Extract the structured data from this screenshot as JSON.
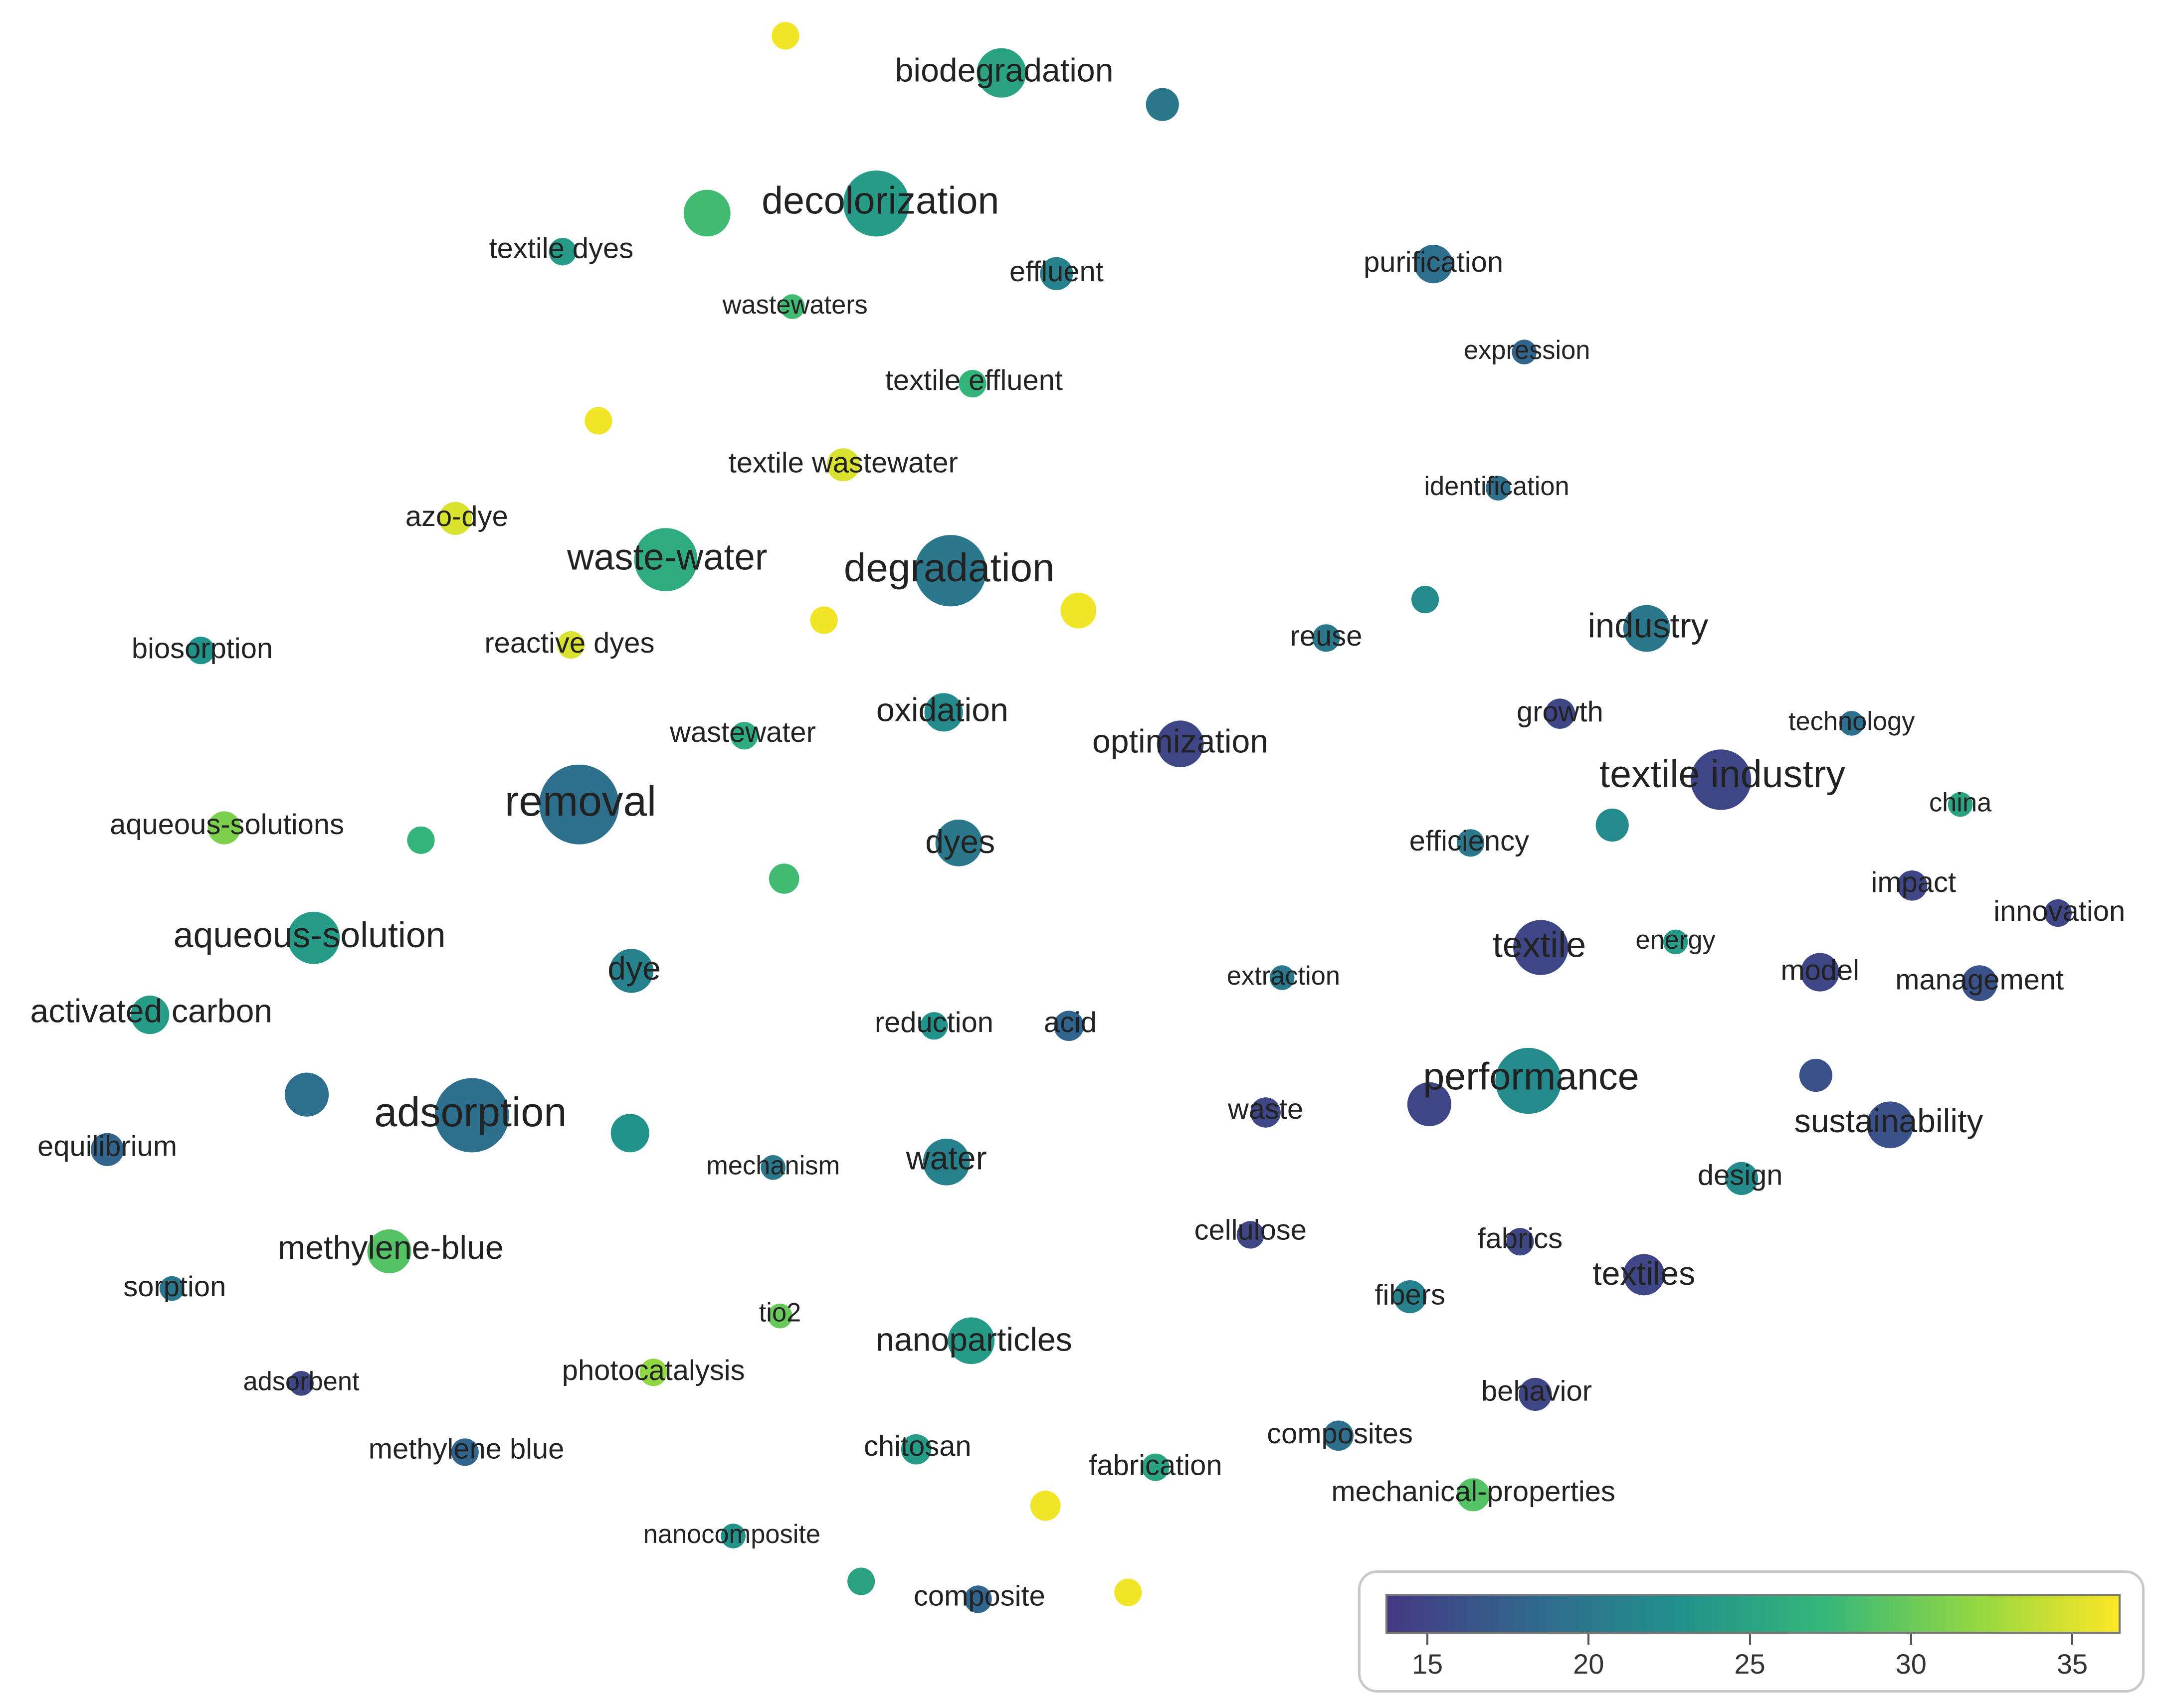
{
  "colorscale": {
    "colors": [
      "#443983",
      "#31688e",
      "#21918c",
      "#35b779",
      "#90d743",
      "#fde725"
    ],
    "min": 13.7,
    "max": 36.5,
    "ticks": [
      {
        "value": 15,
        "label": "15"
      },
      {
        "value": 20,
        "label": "20"
      },
      {
        "value": 25,
        "label": "25"
      },
      {
        "value": 30,
        "label": "30"
      },
      {
        "value": 35,
        "label": "35"
      }
    ]
  },
  "nodes": [
    {
      "label": "biodegradation",
      "value": 25
    },
    {
      "label": "decolorization",
      "value": 24
    },
    {
      "label": "textile dyes",
      "value": 24
    },
    {
      "label": "wastewaters",
      "value": 28
    },
    {
      "label": "effluent",
      "value": 21
    },
    {
      "label": "purification",
      "value": 19
    },
    {
      "label": "expression",
      "value": 18
    },
    {
      "label": "textile effluent",
      "value": 27
    },
    {
      "label": "textile wastewater",
      "value": 35
    },
    {
      "label": "identification",
      "value": 19
    },
    {
      "label": "azo-dye",
      "value": 35
    },
    {
      "label": "waste-water",
      "value": 26
    },
    {
      "label": "degradation",
      "value": 20
    },
    {
      "label": "reuse",
      "value": 20
    },
    {
      "label": "industry",
      "value": 20
    },
    {
      "label": "biosorption",
      "value": 23
    },
    {
      "label": "reactive dyes",
      "value": 35
    },
    {
      "label": "growth",
      "value": 15
    },
    {
      "label": "technology",
      "value": 19
    },
    {
      "label": "wastewater",
      "value": 26
    },
    {
      "label": "oxidation",
      "value": 22
    },
    {
      "label": "optimization",
      "value": 15
    },
    {
      "label": "textile industry",
      "value": 15
    },
    {
      "label": "china",
      "value": 25
    },
    {
      "label": "aqueous-solutions",
      "value": 31
    },
    {
      "label": "removal",
      "value": 19
    },
    {
      "label": "dyes",
      "value": 20
    },
    {
      "label": "efficiency",
      "value": 20
    },
    {
      "label": "impact",
      "value": 15
    },
    {
      "label": "innovation",
      "value": 15
    },
    {
      "label": "aqueous-solution",
      "value": 24
    },
    {
      "label": "dye",
      "value": 21
    },
    {
      "label": "textile",
      "value": 15
    },
    {
      "label": "energy",
      "value": 24
    },
    {
      "label": "model",
      "value": 15
    },
    {
      "label": "management",
      "value": 16
    },
    {
      "label": "activated carbon",
      "value": 24
    },
    {
      "label": "extraction",
      "value": 20
    },
    {
      "label": "reduction",
      "value": 23
    },
    {
      "label": "acid",
      "value": 18
    },
    {
      "label": "performance",
      "value": 22
    },
    {
      "label": "sustainability",
      "value": 16
    },
    {
      "label": "equilibrium",
      "value": 18
    },
    {
      "label": "adsorption",
      "value": 19
    },
    {
      "label": "waste",
      "value": 15
    },
    {
      "label": "mechanism",
      "value": 20
    },
    {
      "label": "water",
      "value": 21
    },
    {
      "label": "design",
      "value": 22
    },
    {
      "label": "cellulose",
      "value": 15
    },
    {
      "label": "fabrics",
      "value": 15
    },
    {
      "label": "methylene-blue",
      "value": 29
    },
    {
      "label": "textiles",
      "value": 15
    },
    {
      "label": "sorption",
      "value": 20
    },
    {
      "label": "fibers",
      "value": 21
    },
    {
      "label": "tio2",
      "value": 30
    },
    {
      "label": "nanoparticles",
      "value": 24
    },
    {
      "label": "photocatalysis",
      "value": 32
    },
    {
      "label": "adsorbent",
      "value": 15
    },
    {
      "label": "behavior",
      "value": 15
    },
    {
      "label": "methylene blue",
      "value": 18
    },
    {
      "label": "chitosan",
      "value": 24
    },
    {
      "label": "composites",
      "value": 19
    },
    {
      "label": "fabrication",
      "value": 25
    },
    {
      "label": "mechanical-properties",
      "value": 29
    },
    {
      "label": "nanocomposite",
      "value": 23
    },
    {
      "label": "composite",
      "value": 18
    }
  ],
  "unlabeled_nodes": [
    {
      "value": 36
    },
    {
      "value": 20
    },
    {
      "value": 28
    },
    {
      "value": 36
    },
    {
      "value": 36
    },
    {
      "value": 36
    },
    {
      "value": 22
    },
    {
      "value": 22
    },
    {
      "value": 27
    },
    {
      "value": 28
    },
    {
      "value": 19
    },
    {
      "value": 23
    },
    {
      "value": 16
    },
    {
      "value": 15
    },
    {
      "value": 36
    },
    {
      "value": 25
    },
    {
      "value": 36
    }
  ]
}
